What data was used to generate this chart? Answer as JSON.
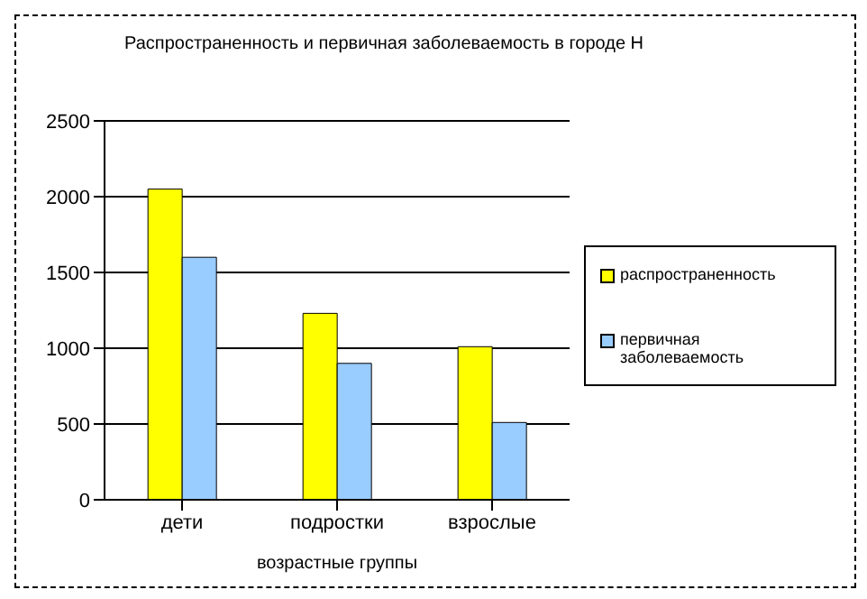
{
  "chart_data": {
    "type": "bar",
    "title": "Распространенность и первичная заболеваемость в городе Н",
    "xlabel": "возрастные группы",
    "categories": [
      "дети",
      "подростки",
      "взрослые"
    ],
    "series": [
      {
        "name": "распространенность",
        "color": "#ffff00",
        "values": [
          2050,
          1230,
          1010
        ]
      },
      {
        "name": "первичная заболеваемость",
        "color": "#99ccff",
        "values": [
          1600,
          900,
          510
        ]
      }
    ],
    "ylim": [
      0,
      2500
    ],
    "yticks": [
      0,
      500,
      1000,
      1500,
      2000,
      2500
    ],
    "grid": "y",
    "legend": "right"
  }
}
